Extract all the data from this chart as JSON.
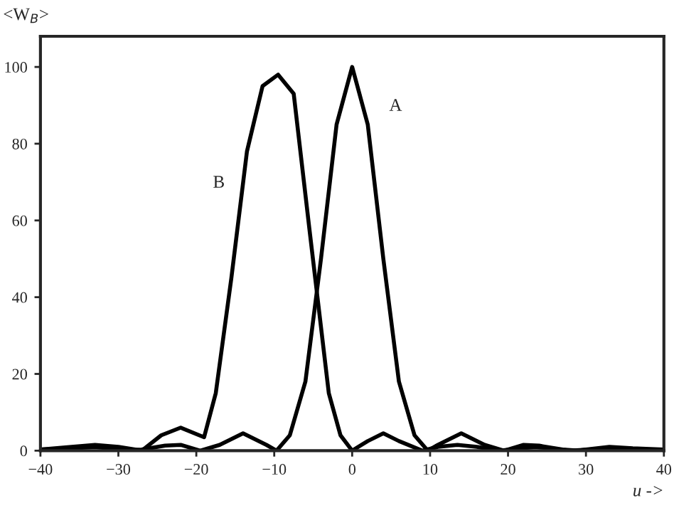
{
  "chart_data": {
    "type": "line",
    "xlabel": "u ->",
    "ylabel": "<W$_{B}$>",
    "xlim": [
      -40,
      40
    ],
    "ylim": [
      0,
      108
    ],
    "xticks": [
      -40,
      -30,
      -20,
      -10,
      0,
      10,
      20,
      30,
      40
    ],
    "yticks": [
      0,
      20,
      40,
      60,
      80,
      100
    ],
    "grid": false,
    "legend": false,
    "marker": "none",
    "line_style": "solid",
    "series": [
      {
        "name": "A",
        "color": "#000000",
        "x": [
          -40,
          -36,
          -33,
          -30,
          -29,
          -27,
          -24,
          -22,
          -19.5,
          -17,
          -14,
          -11,
          -9.7,
          -8,
          -6,
          -4,
          -2,
          0,
          2,
          4,
          6,
          8,
          9.7,
          11,
          14,
          17,
          19.5,
          22,
          24,
          27,
          29,
          30,
          33,
          36,
          40
        ],
        "values": [
          0.3,
          0.6,
          1,
          0.3,
          0,
          0.3,
          1.3,
          1.5,
          0,
          1.5,
          4.5,
          1.5,
          0,
          4,
          18,
          50,
          85,
          100,
          85,
          50,
          18,
          4,
          0,
          1.5,
          4.5,
          1.5,
          0,
          1.5,
          1.3,
          0.3,
          0,
          0.3,
          1,
          0.6,
          0.3
        ]
      },
      {
        "name": "B",
        "color": "#000000",
        "x": [
          -40,
          -36,
          -33,
          -30,
          -27,
          -24.5,
          -22,
          -19,
          -17.5,
          -15.5,
          -13.5,
          -11.5,
          -9.5,
          -7.5,
          -5.5,
          -3,
          -1.5,
          0,
          2,
          4,
          6,
          9,
          11,
          13.5,
          16,
          19,
          23.5,
          28,
          32,
          36,
          40
        ],
        "values": [
          0.3,
          1,
          1.5,
          1,
          0,
          4,
          6,
          3.5,
          15,
          45,
          78,
          95,
          98,
          93,
          58,
          15,
          4,
          0,
          2.5,
          4.5,
          2.5,
          0,
          1,
          1.5,
          1,
          0,
          1,
          0,
          0.5,
          0.3,
          0
        ]
      }
    ]
  }
}
